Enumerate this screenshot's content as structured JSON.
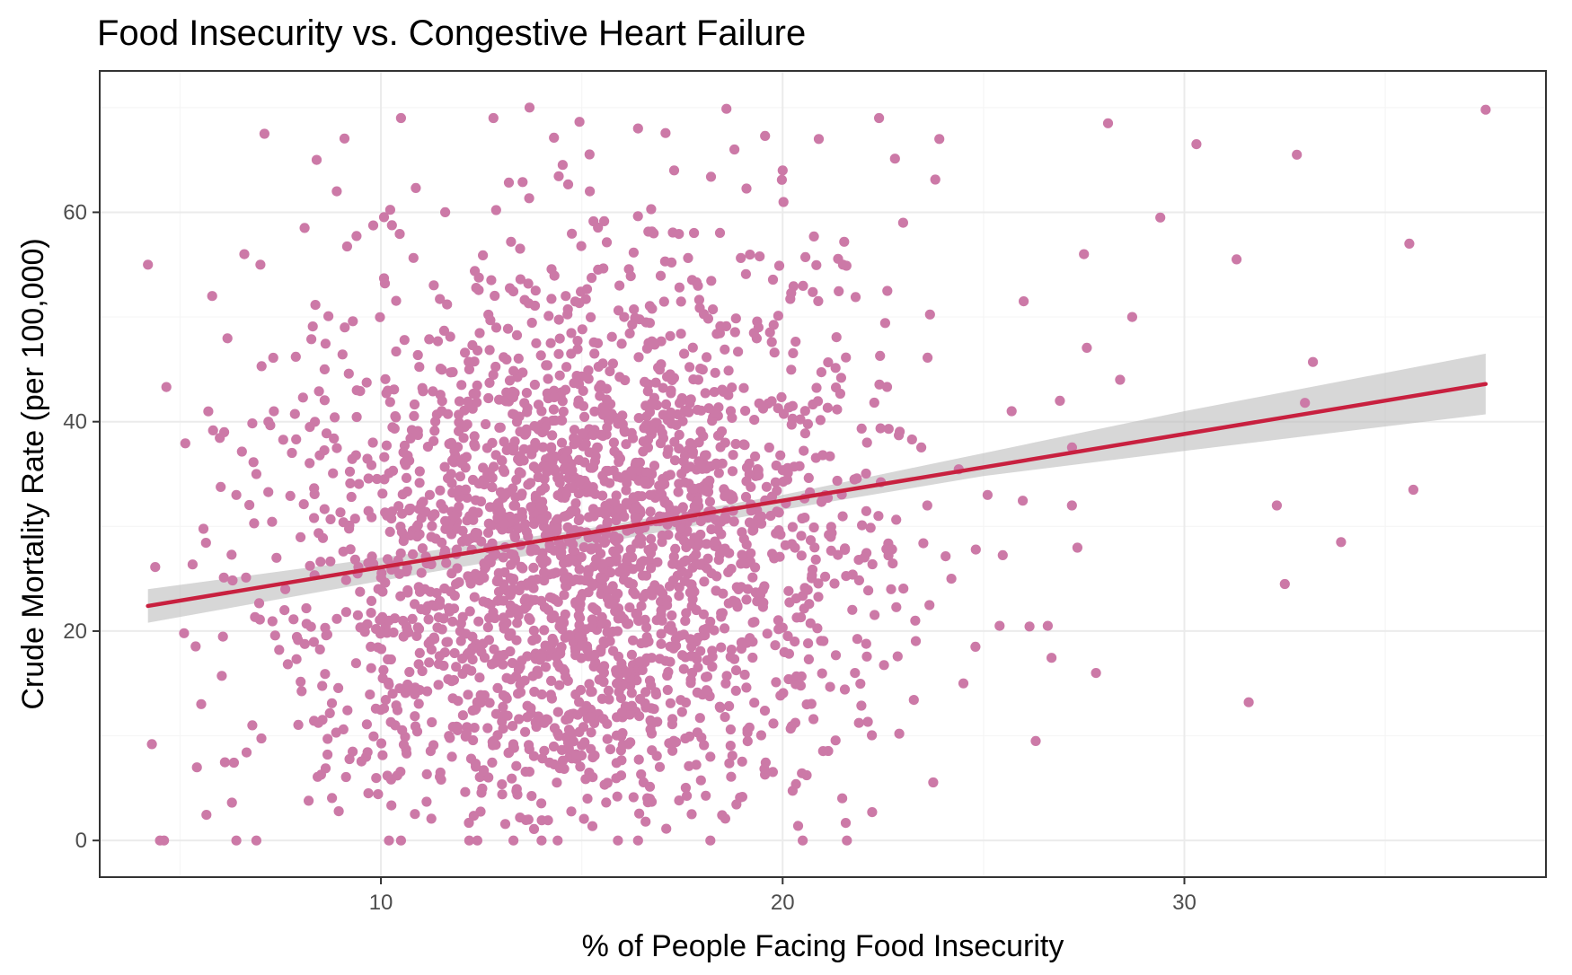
{
  "chart_data": {
    "type": "scatter",
    "title": "Food Insecurity vs. Congestive Heart Failure",
    "xlabel": "% of People Facing Food Insecurity",
    "ylabel": "Crude Mortality Rate (per 100,000)",
    "xlim": [
      3.0,
      39.0
    ],
    "ylim": [
      -3.5,
      73.5
    ],
    "x_ticks": [
      10,
      20,
      30
    ],
    "y_ticks": [
      0,
      20,
      40,
      60
    ],
    "x_tick_labels": [
      "10",
      "20",
      "30"
    ],
    "y_tick_labels": [
      "0",
      "20",
      "40",
      "60"
    ],
    "grid": true,
    "legend": "none",
    "colors": {
      "points": "#cc79a7",
      "trend_line": "#c8203f",
      "confidence_band": "#bfbfbf",
      "panel_border": "#333333",
      "grid_major": "#ebebeb",
      "grid_minor": "#f5f5f5"
    },
    "series": [
      {
        "type": "scatter",
        "x": [
          4.3,
          4.6,
          4.2,
          5.1,
          5.8,
          6.1,
          6.4,
          6.6,
          6.9,
          7.1,
          7.2,
          7.4,
          7.0,
          6.8,
          7.6,
          8.2,
          8.4,
          8.1,
          8.6,
          8.9,
          9.1,
          9.4,
          9.8,
          10.2,
          10.5,
          10.9,
          11.2,
          11.6,
          11.9,
          12.2,
          12.5,
          12.8,
          13.1,
          13.4,
          13.7,
          14.0,
          14.3,
          14.6,
          14.9,
          15.2,
          15.5,
          15.8,
          16.1,
          16.4,
          16.7,
          17.0,
          17.3,
          17.6,
          17.9,
          18.2,
          18.5,
          18.8,
          19.1,
          19.4,
          19.7,
          20.0,
          20.3,
          20.6,
          20.9,
          21.2,
          21.5,
          21.8,
          22.1,
          22.4,
          22.7,
          23.0,
          23.3,
          23.6,
          23.9,
          24.2,
          24.5,
          24.8,
          25.1,
          25.4,
          25.7,
          26.0,
          26.3,
          26.6,
          26.9,
          27.2,
          27.5,
          27.8,
          28.1,
          28.4,
          28.7,
          29.4,
          30.3,
          31.3,
          31.6,
          32.3,
          32.5,
          32.8,
          33.0,
          33.2,
          33.9,
          35.6,
          35.7,
          37.5,
          4.5,
          6.4,
          6.9,
          12.2,
          13.3,
          14.0,
          14.4,
          15.9,
          16.4,
          18.2,
          20.5,
          21.6,
          10.2,
          10.5,
          12.4
        ],
        "y": [
          9.2,
          0.0,
          55.0,
          19.8,
          52.0,
          39.0,
          33.0,
          56.0,
          35.0,
          67.5,
          40.0,
          27.0,
          55.0,
          11.0,
          22.0,
          3.8,
          65.0,
          58.5,
          45.0,
          62.0,
          49.0,
          43.0,
          38.0,
          21.0,
          69.0,
          30.0,
          17.0,
          60.0,
          26.0,
          45.0,
          18.0,
          69.0,
          33.0,
          22.0,
          70.0,
          41.0,
          19.0,
          52.0,
          12.0,
          62.0,
          25.0,
          38.0,
          16.0,
          68.0,
          33.0,
          21.0,
          64.0,
          28.0,
          44.0,
          8.0,
          36.0,
          66.0,
          23.0,
          49.0,
          31.0,
          64.0,
          19.0,
          13.0,
          67.0,
          29.0,
          55.0,
          16.0,
          38.0,
          69.0,
          24.0,
          59.0,
          21.0,
          32.0,
          67.0,
          25.0,
          15.0,
          18.5,
          33.0,
          20.5,
          41.0,
          51.5,
          9.5,
          20.5,
          42.0,
          32.0,
          56.0,
          16.0,
          68.5,
          44.0,
          50.0,
          59.5,
          66.5,
          55.5,
          13.2,
          32.0,
          24.5,
          65.5,
          41.8,
          45.7,
          28.5,
          57.0,
          33.5,
          69.8,
          0.0,
          0.0,
          0.0,
          0.0,
          0.0,
          0.0,
          0.0,
          0.0,
          0.0,
          0.0,
          0.0,
          0.0,
          0.0,
          0.0,
          0.0
        ],
        "note_count_rendered_points": 2400
      },
      {
        "type": "regression-line",
        "x": [
          4.2,
          37.5
        ],
        "y": [
          22.4,
          43.6
        ]
      },
      {
        "type": "confidence-band",
        "x": [
          4.2,
          10.0,
          15.0,
          20.0,
          25.0,
          30.0,
          37.5
        ],
        "upper": [
          24.0,
          27.0,
          29.7,
          33.0,
          37.0,
          41.0,
          46.5
        ],
        "lower": [
          20.8,
          24.8,
          28.1,
          31.6,
          34.8,
          37.2,
          40.7
        ]
      }
    ]
  }
}
